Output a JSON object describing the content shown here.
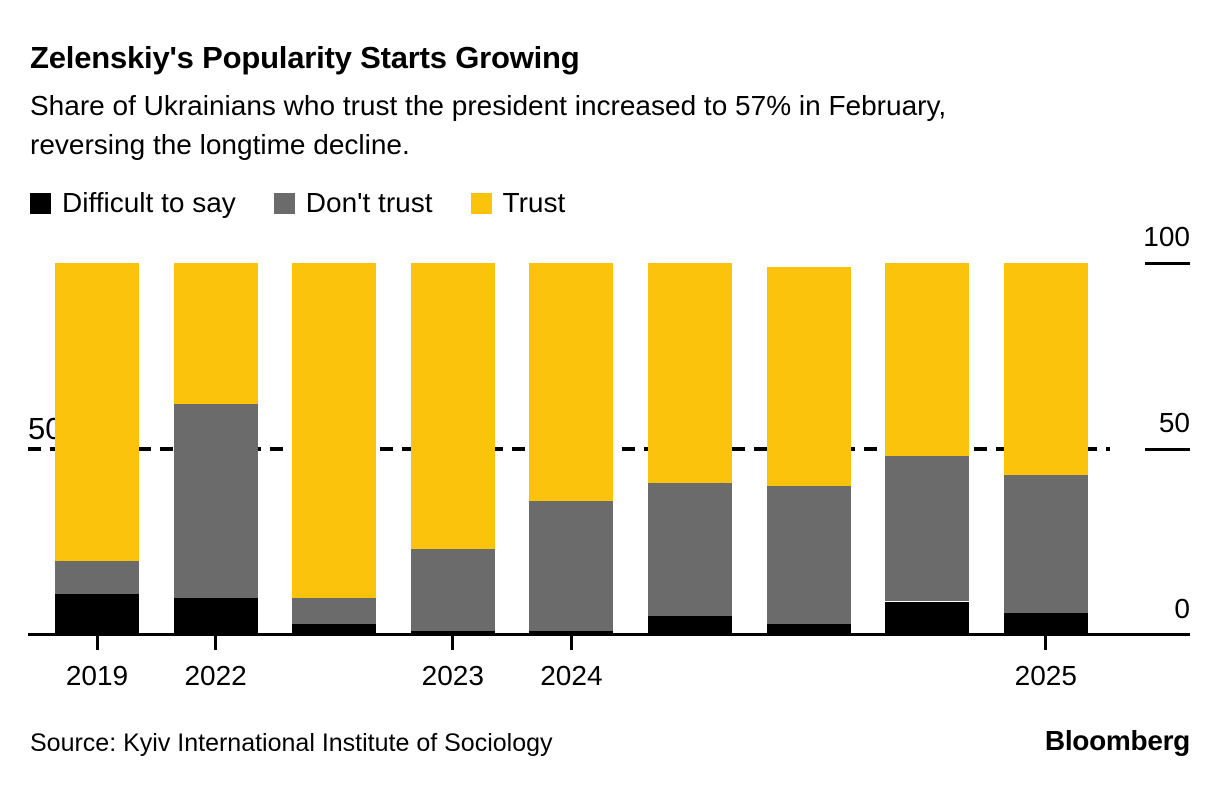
{
  "header": {
    "title": "Zelenskiy's Popularity Starts Growing",
    "subtitle": "Share of Ukrainians who trust the president increased to 57% in February, reversing the longtime decline."
  },
  "footer": {
    "source": "Source: Kyiv International Institute of Sociology",
    "brand": "Bloomberg"
  },
  "chart_data": {
    "type": "bar",
    "stacked": true,
    "unit": "%",
    "title": "Zelenskiy's Popularity Starts Growing",
    "categories": [
      "2019",
      "2022",
      "",
      "2023",
      "2024",
      "",
      "",
      "",
      "2025"
    ],
    "series": [
      {
        "name": "Difficult to say",
        "color": "#000000",
        "values": [
          11,
          10,
          3,
          1,
          1,
          5,
          3,
          9,
          6
        ]
      },
      {
        "name": "Don't trust",
        "color": "#6b6b6b",
        "values": [
          9,
          52,
          7,
          22,
          35,
          36,
          37,
          39,
          37
        ]
      },
      {
        "name": "Trust",
        "color": "#fcc30d",
        "values": [
          80,
          38,
          90,
          77,
          64,
          59,
          59,
          52,
          57
        ]
      }
    ],
    "ylim": [
      0,
      100
    ],
    "yticks": [
      0,
      50,
      100
    ],
    "ytick_labels": [
      "0",
      "50",
      "100"
    ],
    "x_tick_bars": [
      0,
      1,
      3,
      4,
      8
    ],
    "reference_line": {
      "value": 50,
      "label": "50%",
      "style": "dashed"
    },
    "legend_position": "top",
    "grid": false
  }
}
